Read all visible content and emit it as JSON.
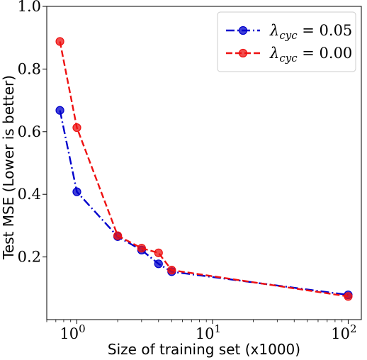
{
  "chart_data": {
    "type": "line",
    "xlabel": "Size of training set (x1000)",
    "ylabel": "Test MSE (Lower is better)",
    "xscale": "log",
    "xlim": [
      0.6,
      125
    ],
    "ylim": [
      0.0,
      1.0
    ],
    "x_ticks": [
      {
        "value": 1,
        "base": "10",
        "exp": "0"
      },
      {
        "value": 10,
        "base": "10",
        "exp": "1"
      },
      {
        "value": 100,
        "base": "10",
        "exp": "2"
      }
    ],
    "y_ticks": [
      {
        "value": 0.2,
        "label": "0.2"
      },
      {
        "value": 0.4,
        "label": "0.4"
      },
      {
        "value": 0.6,
        "label": "0.6"
      },
      {
        "value": 0.8,
        "label": "0.8"
      },
      {
        "value": 1.0,
        "label": "1.0"
      }
    ],
    "grid": false,
    "legend_position": "top-right",
    "series": [
      {
        "name": "λcyc = 0.05",
        "legend": {
          "symbol": "λ",
          "sub": "cyc",
          "rest": " = 0.05"
        },
        "color": "#0000cc",
        "dash": "dashdot",
        "x": [
          0.75,
          1,
          2,
          3,
          4,
          5,
          100
        ],
        "y": [
          0.668,
          0.408,
          0.265,
          0.222,
          0.178,
          0.153,
          0.079
        ]
      },
      {
        "name": "λcyc = 0.00",
        "legend": {
          "symbol": "λ",
          "sub": "cyc",
          "rest": " = 0.00"
        },
        "color": "#ee1111",
        "dash": "dashed",
        "x": [
          0.75,
          1,
          2,
          3,
          4,
          5,
          100
        ],
        "y": [
          0.888,
          0.613,
          0.268,
          0.228,
          0.213,
          0.158,
          0.074
        ]
      }
    ]
  }
}
